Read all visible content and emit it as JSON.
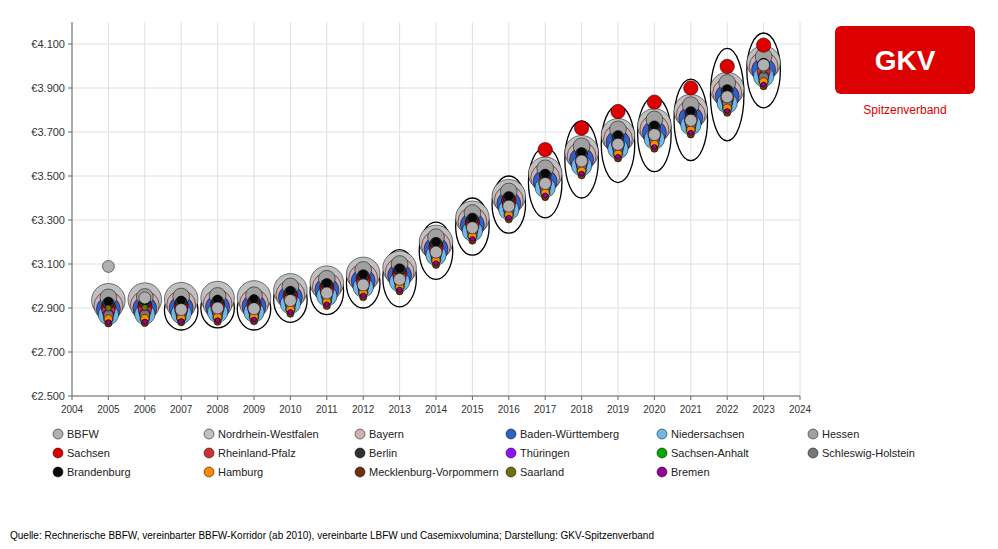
{
  "chart_data": {
    "type": "scatter",
    "x": [
      2005,
      2006,
      2007,
      2008,
      2009,
      2010,
      2011,
      2012,
      2013,
      2014,
      2015,
      2016,
      2017,
      2018,
      2019,
      2020,
      2021,
      2022,
      2023
    ],
    "xlim": [
      2004,
      2024
    ],
    "xticks": [
      2004,
      2005,
      2006,
      2007,
      2008,
      2009,
      2010,
      2011,
      2012,
      2013,
      2014,
      2015,
      2016,
      2017,
      2018,
      2019,
      2020,
      2021,
      2022,
      2023,
      2024
    ],
    "ylim": [
      2500,
      4200
    ],
    "yticks": [
      {
        "value": 2500,
        "label": "€2.500"
      },
      {
        "value": 2700,
        "label": "€2.700"
      },
      {
        "value": 2900,
        "label": "€2.900"
      },
      {
        "value": 3100,
        "label": "€3.100"
      },
      {
        "value": 3300,
        "label": "€3.300"
      },
      {
        "value": 3500,
        "label": "€3.500"
      },
      {
        "value": 3700,
        "label": "€3.700"
      },
      {
        "value": 3900,
        "label": "€3.900"
      },
      {
        "value": 4100,
        "label": "€4.100"
      }
    ],
    "grid": true,
    "legend": "bottom",
    "series": [
      {
        "name": "BBFW",
        "color": "#b0b0b0",
        "values": [
          3089,
          2946,
          2893,
          2900,
          2897,
          2934,
          2968,
          3005,
          3030,
          3154,
          3265,
          3363,
          3466,
          3568,
          3644,
          3688,
          3753,
          3860,
          4005
        ]
      },
      {
        "name": "Nordrhein-Westfalen",
        "color": "#c0c0c0",
        "values": [
          2935,
          2938,
          2940,
          2945,
          2948,
          2980,
          3015,
          3055,
          3082,
          3200,
          3310,
          3408,
          3510,
          3608,
          3685,
          3730,
          3795,
          3895,
          4015
        ]
      },
      {
        "name": "Bayern",
        "color": "#d4b0b0",
        "values": [
          2910,
          2912,
          2915,
          2918,
          2920,
          2960,
          2995,
          3035,
          3062,
          3183,
          3293,
          3390,
          3492,
          3590,
          3668,
          3712,
          3778,
          3878,
          3998
        ]
      },
      {
        "name": "Baden-Württemberg",
        "color": "#3060c8",
        "values": [
          2895,
          2898,
          2900,
          2905,
          2908,
          2948,
          2983,
          3023,
          3048,
          3168,
          3278,
          3375,
          3475,
          3575,
          3653,
          3697,
          3762,
          3862,
          3982
        ]
      },
      {
        "name": "Niedersachsen",
        "color": "#70b8e8",
        "values": [
          2870,
          2872,
          2875,
          2880,
          2882,
          2920,
          2955,
          2995,
          3020,
          3140,
          3250,
          3347,
          3448,
          3547,
          3624,
          3668,
          3733,
          3832,
          3952
        ]
      },
      {
        "name": "Hessen",
        "color": "#a0a0a0",
        "values": [
          2948,
          2950,
          2952,
          2955,
          2958,
          2998,
          3033,
          3073,
          3100,
          3222,
          3332,
          3430,
          3535,
          3635,
          3712,
          3757,
          3822,
          3923,
          4043
        ]
      },
      {
        "name": "Sachsen",
        "color": "#dd0000",
        "values": [
          2905,
          2908,
          2910,
          2915,
          2918,
          2958,
          2993,
          3033,
          3060,
          3180,
          3290,
          3388,
          3620,
          3718,
          3793,
          3836,
          3900,
          3998,
          4095
        ]
      },
      {
        "name": "Rheinland-Pfalz",
        "color": "#cc3030",
        "values": [
          2888,
          2890,
          2892,
          2898,
          2900,
          2940,
          2975,
          3015,
          3042,
          3162,
          3272,
          3369,
          3470,
          3568,
          3645,
          3689,
          3754,
          3854,
          3974
        ]
      },
      {
        "name": "Berlin",
        "color": "#303030",
        "values": [
          2922,
          2924,
          2926,
          2930,
          2932,
          2972,
          3007,
          3047,
          3074,
          3194,
          3304,
          3402,
          3504,
          3602,
          3679,
          3723,
          3788,
          3888,
          4008
        ]
      },
      {
        "name": "Thüringen",
        "color": "#9010ff",
        "values": [
          2870,
          2872,
          2875,
          2880,
          2882,
          2918,
          2953,
          2993,
          3020,
          3140,
          3250,
          3347,
          3448,
          3547,
          3624,
          3668,
          3733,
          3832,
          3952
        ]
      },
      {
        "name": "Sachsen-Anhalt",
        "color": "#00aa00",
        "values": [
          2850,
          2852,
          2855,
          2858,
          2860,
          2896,
          2931,
          2971,
          2998,
          3118,
          3228,
          3325,
          3426,
          3525,
          3602,
          3646,
          3711,
          3810,
          3930
        ]
      },
      {
        "name": "Schleswig-Holstein",
        "color": "#787878",
        "values": [
          2868,
          2870,
          2872,
          2878,
          2880,
          2916,
          2951,
          2991,
          3018,
          3138,
          3248,
          3345,
          3446,
          3545,
          3622,
          3666,
          3731,
          3830,
          3950
        ]
      },
      {
        "name": "Brandenburg",
        "color": "#080808",
        "values": [
          2930,
          2932,
          2935,
          2940,
          2942,
          2978,
          3013,
          3053,
          3080,
          3200,
          3310,
          3408,
          3510,
          3608,
          3685,
          3730,
          3795,
          3895,
          4015
        ]
      },
      {
        "name": "Hamburg",
        "color": "#ff8800",
        "values": [
          2850,
          2852,
          2855,
          2858,
          2860,
          2894,
          2929,
          2969,
          2996,
          3116,
          3226,
          3323,
          3424,
          3523,
          3600,
          3644,
          3709,
          3808,
          3928
        ]
      },
      {
        "name": "Mecklenburg-Vorpommern",
        "color": "#703010",
        "values": [
          2830,
          2832,
          2835,
          2838,
          2840,
          2874,
          2909,
          2949,
          2976,
          3096,
          3206,
          3303,
          3404,
          3503,
          3580,
          3624,
          3689,
          3788,
          3908
        ]
      },
      {
        "name": "Saarland",
        "color": "#707010",
        "values": [
          2900,
          2902,
          2905,
          2908,
          2910,
          2946,
          2981,
          3021,
          3048,
          3168,
          3278,
          3375,
          3476,
          3575,
          3652,
          3696,
          3761,
          3860,
          3980
        ]
      },
      {
        "name": "Bremen",
        "color": "#990099",
        "values": [
          2835,
          2838,
          2840,
          2845,
          2848,
          2882,
          2917,
          2957,
          2984,
          3104,
          3214,
          3311,
          3412,
          3511,
          3588,
          3632,
          3697,
          3796,
          3916
        ]
      }
    ],
    "corridor": {
      "upper": [
        null,
        null,
        2980,
        2990,
        2990,
        3040,
        3080,
        3120,
        3165,
        3290,
        3400,
        3500,
        3630,
        3750,
        3820,
        3860,
        3940,
        4080,
        4150
      ],
      "lower": [
        null,
        null,
        2800,
        2810,
        2800,
        2835,
        2870,
        2900,
        2905,
        3030,
        3140,
        3240,
        3310,
        3400,
        3470,
        3520,
        3570,
        3660,
        3810
      ],
      "color": "#000000"
    },
    "logo": {
      "text": "GKV",
      "subtext": "Spitzenverband",
      "color": "#dd0000"
    },
    "source": "Quelle: Rechnerische BBFW, vereinbarter BBFW-Korridor (ab 2010), vereinbarte LBFW und Casemixvolumina; Darstellung: GKV-Spitzenverband"
  }
}
